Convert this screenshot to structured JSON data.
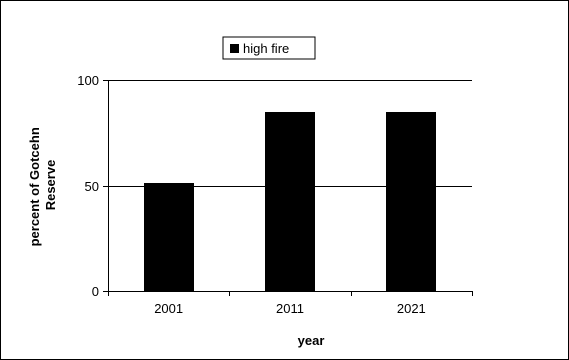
{
  "chart_data": {
    "type": "bar",
    "categories": [
      "2001",
      "2011",
      "2021"
    ],
    "series": [
      {
        "name": "high fire",
        "values": [
          51,
          85,
          85
        ],
        "color": "#000000"
      }
    ],
    "xlabel": "year",
    "ylabel": "percent of Gotcehn Reserve",
    "ylim": [
      0,
      100
    ],
    "yticks": [
      0,
      50,
      100
    ],
    "grid": true,
    "legend": "top-center"
  }
}
